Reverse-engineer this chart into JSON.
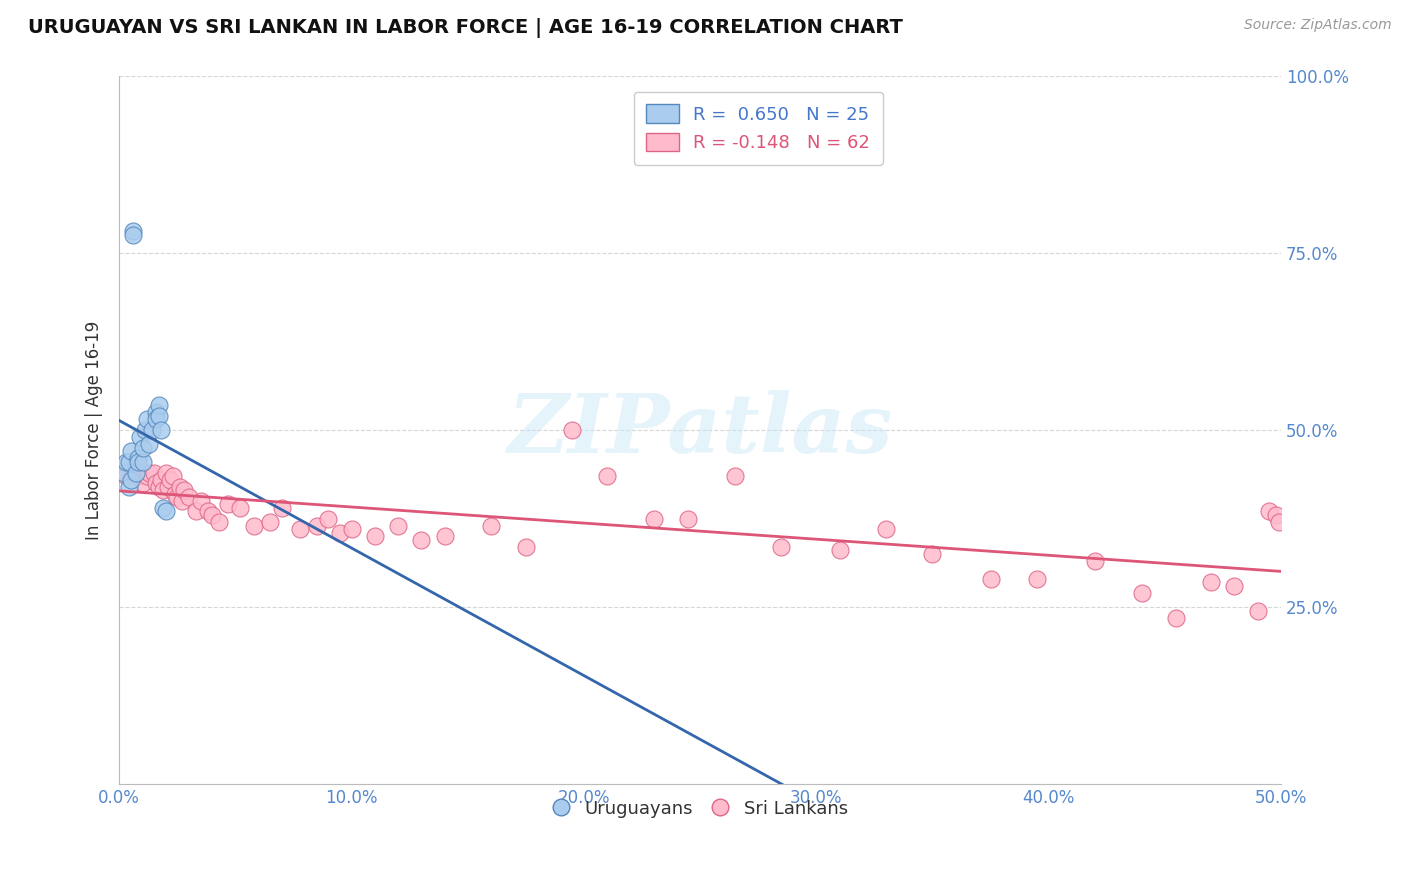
{
  "title": "URUGUAYAN VS SRI LANKAN IN LABOR FORCE | AGE 16-19 CORRELATION CHART",
  "source": "Source: ZipAtlas.com",
  "ylabel": "In Labor Force | Age 16-19",
  "xlim": [
    0.0,
    0.5
  ],
  "ylim": [
    0.0,
    1.0
  ],
  "xticks": [
    0.0,
    0.1,
    0.2,
    0.3,
    0.4,
    0.5
  ],
  "xtick_labels": [
    "0.0%",
    "10.0%",
    "20.0%",
    "30.0%",
    "40.0%",
    "50.0%"
  ],
  "yticks": [
    0.25,
    0.5,
    0.75,
    1.0
  ],
  "ytick_labels": [
    "25.0%",
    "50.0%",
    "75.0%",
    "100.0%"
  ],
  "uruguayan_x": [
    0.002,
    0.003,
    0.004,
    0.004,
    0.005,
    0.005,
    0.006,
    0.006,
    0.007,
    0.008,
    0.008,
    0.009,
    0.01,
    0.01,
    0.011,
    0.012,
    0.013,
    0.014,
    0.016,
    0.016,
    0.017,
    0.017,
    0.018,
    0.019,
    0.02
  ],
  "uruguayan_y": [
    0.44,
    0.455,
    0.42,
    0.455,
    0.43,
    0.47,
    0.78,
    0.775,
    0.44,
    0.46,
    0.455,
    0.49,
    0.455,
    0.475,
    0.5,
    0.515,
    0.48,
    0.5,
    0.525,
    0.515,
    0.535,
    0.52,
    0.5,
    0.39,
    0.385
  ],
  "srilanka_x": [
    0.003,
    0.006,
    0.008,
    0.01,
    0.012,
    0.013,
    0.015,
    0.016,
    0.017,
    0.018,
    0.019,
    0.02,
    0.021,
    0.022,
    0.023,
    0.024,
    0.025,
    0.026,
    0.027,
    0.028,
    0.03,
    0.033,
    0.035,
    0.038,
    0.04,
    0.043,
    0.047,
    0.052,
    0.058,
    0.065,
    0.07,
    0.078,
    0.085,
    0.09,
    0.095,
    0.1,
    0.11,
    0.12,
    0.13,
    0.14,
    0.16,
    0.175,
    0.195,
    0.21,
    0.23,
    0.245,
    0.265,
    0.285,
    0.31,
    0.33,
    0.35,
    0.375,
    0.395,
    0.42,
    0.44,
    0.455,
    0.47,
    0.48,
    0.49,
    0.495,
    0.498,
    0.499
  ],
  "srilanka_y": [
    0.435,
    0.445,
    0.435,
    0.425,
    0.435,
    0.44,
    0.44,
    0.425,
    0.42,
    0.43,
    0.415,
    0.44,
    0.42,
    0.43,
    0.435,
    0.41,
    0.405,
    0.42,
    0.4,
    0.415,
    0.405,
    0.385,
    0.4,
    0.385,
    0.38,
    0.37,
    0.395,
    0.39,
    0.365,
    0.37,
    0.39,
    0.36,
    0.365,
    0.375,
    0.355,
    0.36,
    0.35,
    0.365,
    0.345,
    0.35,
    0.365,
    0.335,
    0.5,
    0.435,
    0.375,
    0.375,
    0.435,
    0.335,
    0.33,
    0.36,
    0.325,
    0.29,
    0.29,
    0.315,
    0.27,
    0.235,
    0.285,
    0.28,
    0.245,
    0.385,
    0.38,
    0.37
  ],
  "uruguayan_color": "#aaccee",
  "srilanka_color": "#ffbbcc",
  "uruguayan_edge_color": "#5588bb",
  "srilanka_edge_color": "#dd6688",
  "uruguayan_line_color": "#3366aa",
  "srilanka_line_color": "#dd5577",
  "uruguayan_R": 0.65,
  "uruguayan_N": 25,
  "srilanka_R": -0.148,
  "srilanka_N": 62,
  "background_color": "#ffffff",
  "grid_color": "#cccccc",
  "watermark_text": "ZIPatlas",
  "legend_blue_color": "#4477cc",
  "legend_pink_color": "#dd5577",
  "axis_tick_color": "#5588cc",
  "ylabel_color": "#333333"
}
